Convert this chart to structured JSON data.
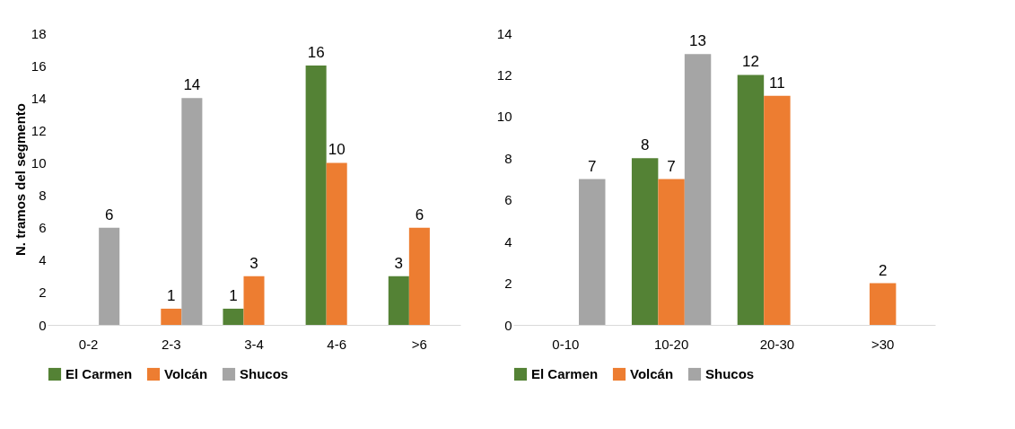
{
  "chart_data": [
    {
      "type": "bar",
      "ylabel": "N. tramos del segmento",
      "categories": [
        "0-2",
        "2-3",
        "3-4",
        "4-6",
        ">6"
      ],
      "series": [
        {
          "name": "El Carmen",
          "color": "#548235",
          "values": [
            null,
            null,
            1,
            16,
            3
          ]
        },
        {
          "name": "Volcán",
          "color": "#ed7d31",
          "values": [
            null,
            1,
            3,
            10,
            6
          ]
        },
        {
          "name": "Shucos",
          "color": "#a5a5a5",
          "values": [
            6,
            14,
            null,
            null,
            null
          ]
        }
      ],
      "ylim": [
        0,
        18
      ],
      "yticks": [
        0,
        2,
        4,
        6,
        8,
        10,
        12,
        14,
        16,
        18
      ],
      "grid": false,
      "legend": "bottom",
      "data_labels": true
    },
    {
      "type": "bar",
      "categories": [
        "0-10",
        "10-20",
        "20-30",
        ">30"
      ],
      "series": [
        {
          "name": "El Carmen",
          "color": "#548235",
          "values": [
            null,
            8,
            12,
            null
          ]
        },
        {
          "name": "Volcán",
          "color": "#ed7d31",
          "values": [
            null,
            7,
            11,
            2
          ]
        },
        {
          "name": "Shucos",
          "color": "#a5a5a5",
          "values": [
            7,
            13,
            null,
            null
          ]
        }
      ],
      "ylim": [
        0,
        14
      ],
      "yticks": [
        0,
        2,
        4,
        6,
        8,
        10,
        12,
        14
      ],
      "grid": false,
      "legend": "bottom",
      "data_labels": true
    }
  ]
}
